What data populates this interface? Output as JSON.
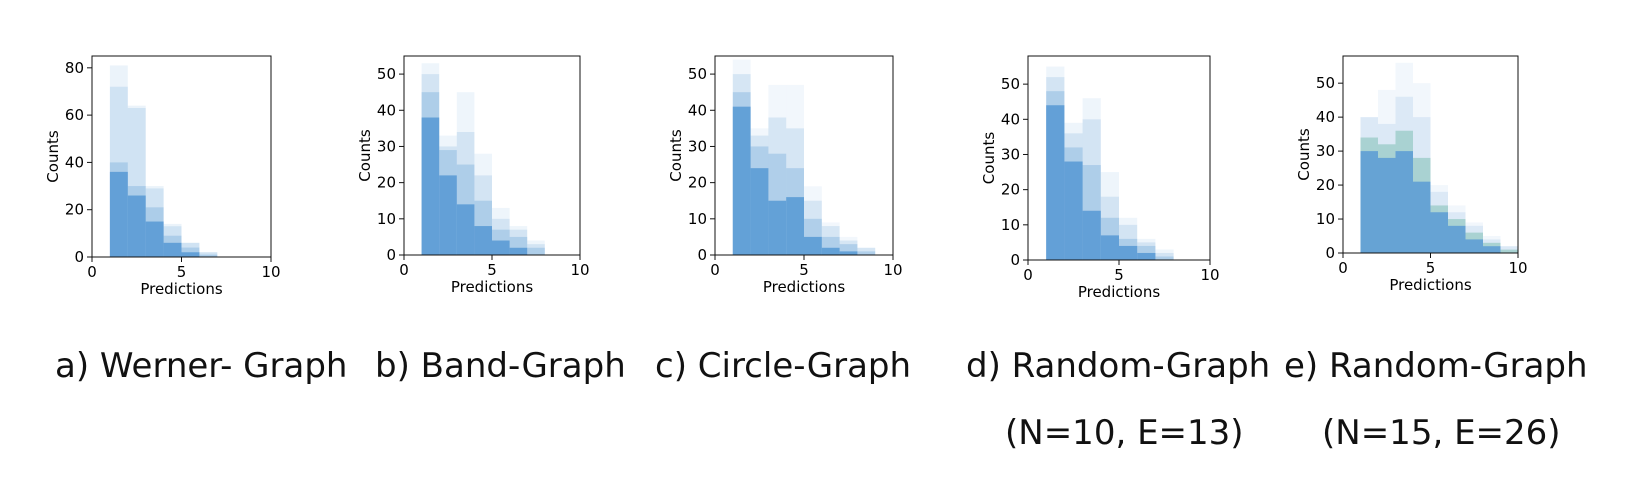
{
  "chart_data": [
    {
      "type": "bar",
      "caption": "a) Werner- Graph",
      "caption_line2": "",
      "xlabel": "Predictions",
      "ylabel": "Counts",
      "xlim": [
        0,
        10
      ],
      "ylim": [
        0,
        85
      ],
      "xticks": [
        0,
        5,
        10
      ],
      "yticks": [
        0,
        20,
        40,
        60,
        80
      ],
      "bin_width": 1,
      "series": [
        {
          "color": "#5b9bd5",
          "alpha": 0.9,
          "x": [
            1,
            2,
            3,
            4,
            5,
            6
          ],
          "values": [
            36,
            26,
            15,
            6,
            2,
            0
          ]
        },
        {
          "color": "#5b9bd5",
          "alpha": 0.3,
          "x": [
            1,
            2,
            3,
            4,
            5,
            6
          ],
          "values": [
            40,
            30,
            21,
            9,
            4,
            1
          ]
        },
        {
          "color": "#5b9bd5",
          "alpha": 0.18,
          "x": [
            1,
            2,
            3,
            4,
            5,
            6
          ],
          "values": [
            72,
            63,
            29,
            13,
            6,
            2
          ]
        },
        {
          "color": "#5b9bd5",
          "alpha": 0.12,
          "x": [
            1,
            2,
            3,
            4,
            5,
            6
          ],
          "values": [
            81,
            64,
            30,
            14,
            6,
            2
          ]
        }
      ]
    },
    {
      "type": "bar",
      "caption": "b) Band-Graph",
      "caption_line2": "",
      "xlabel": "Predictions",
      "ylabel": "Counts",
      "xlim": [
        0,
        10
      ],
      "ylim": [
        0,
        55
      ],
      "xticks": [
        0,
        5,
        10
      ],
      "yticks": [
        0,
        10,
        20,
        30,
        40,
        50
      ],
      "bin_width": 1,
      "series": [
        {
          "color": "#5b9bd5",
          "alpha": 0.9,
          "x": [
            1,
            2,
            3,
            4,
            5,
            6,
            7
          ],
          "values": [
            38,
            22,
            14,
            8,
            4,
            2,
            0
          ]
        },
        {
          "color": "#5b9bd5",
          "alpha": 0.3,
          "x": [
            1,
            2,
            3,
            4,
            5,
            6,
            7
          ],
          "values": [
            45,
            29,
            25,
            15,
            7,
            5,
            2
          ]
        },
        {
          "color": "#5b9bd5",
          "alpha": 0.18,
          "x": [
            1,
            2,
            3,
            4,
            5,
            6,
            7
          ],
          "values": [
            50,
            30,
            34,
            22,
            10,
            7,
            3
          ]
        },
        {
          "color": "#5b9bd5",
          "alpha": 0.1,
          "x": [
            1,
            2,
            3,
            4,
            5,
            6,
            7
          ],
          "values": [
            53,
            33,
            45,
            28,
            13,
            8,
            4
          ]
        }
      ]
    },
    {
      "type": "bar",
      "caption": "c) Circle-Graph",
      "caption_line2": "",
      "xlabel": "Predictions",
      "ylabel": "Counts",
      "xlim": [
        0,
        10
      ],
      "ylim": [
        0,
        55
      ],
      "xticks": [
        0,
        5,
        10
      ],
      "yticks": [
        0,
        10,
        20,
        30,
        40,
        50
      ],
      "bin_width": 1,
      "series": [
        {
          "color": "#5b9bd5",
          "alpha": 0.9,
          "x": [
            1,
            2,
            3,
            4,
            5,
            6,
            7,
            8
          ],
          "values": [
            41,
            24,
            15,
            16,
            5,
            2,
            1,
            0
          ]
        },
        {
          "color": "#5b9bd5",
          "alpha": 0.3,
          "x": [
            1,
            2,
            3,
            4,
            5,
            6,
            7,
            8
          ],
          "values": [
            45,
            30,
            28,
            24,
            10,
            5,
            3,
            1
          ]
        },
        {
          "color": "#5b9bd5",
          "alpha": 0.18,
          "x": [
            1,
            2,
            3,
            4,
            5,
            6,
            7,
            8
          ],
          "values": [
            50,
            33,
            38,
            35,
            15,
            8,
            4,
            2
          ]
        },
        {
          "color": "#5b9bd5",
          "alpha": 0.08,
          "x": [
            1,
            2,
            3,
            4,
            5,
            6,
            7,
            8
          ],
          "values": [
            54,
            35,
            47,
            47,
            19,
            9,
            5,
            2
          ]
        }
      ]
    },
    {
      "type": "bar",
      "caption": "d) Random-Graph",
      "caption_line2": "(N=10, E=13)",
      "xlabel": "Predictions",
      "ylabel": "Counts",
      "xlim": [
        0,
        10
      ],
      "ylim": [
        0,
        58
      ],
      "xticks": [
        0,
        5,
        10
      ],
      "yticks": [
        0,
        10,
        20,
        30,
        40,
        50
      ],
      "bin_width": 1,
      "series": [
        {
          "color": "#5b9bd5",
          "alpha": 0.9,
          "x": [
            1,
            2,
            3,
            4,
            5,
            6,
            7
          ],
          "values": [
            44,
            28,
            14,
            7,
            4,
            2,
            0
          ]
        },
        {
          "color": "#5b9bd5",
          "alpha": 0.3,
          "x": [
            1,
            2,
            3,
            4,
            5,
            6,
            7
          ],
          "values": [
            48,
            32,
            27,
            12,
            6,
            4,
            1
          ]
        },
        {
          "color": "#5b9bd5",
          "alpha": 0.18,
          "x": [
            1,
            2,
            3,
            4,
            5,
            6,
            7
          ],
          "values": [
            52,
            36,
            40,
            18,
            10,
            5,
            2
          ]
        },
        {
          "color": "#5b9bd5",
          "alpha": 0.1,
          "x": [
            1,
            2,
            3,
            4,
            5,
            6,
            7
          ],
          "values": [
            55,
            39,
            46,
            25,
            12,
            6,
            3
          ]
        }
      ]
    },
    {
      "type": "bar",
      "caption": "e) Random-Graph",
      "caption_line2": "(N=15, E=26)",
      "xlabel": "Predictions",
      "ylabel": "Counts",
      "xlim": [
        0,
        10
      ],
      "ylim": [
        0,
        58
      ],
      "xticks": [
        0,
        5,
        10
      ],
      "yticks": [
        0,
        10,
        20,
        30,
        40,
        50
      ],
      "bin_width": 1,
      "series": [
        {
          "color": "#5b9bd5",
          "alpha": 0.85,
          "x": [
            1,
            2,
            3,
            4,
            5,
            6,
            7,
            8,
            9
          ],
          "values": [
            30,
            28,
            30,
            21,
            12,
            8,
            4,
            2,
            0
          ]
        },
        {
          "color": "#4ba88f",
          "alpha": 0.35,
          "x": [
            1,
            2,
            3,
            4,
            5,
            6,
            7,
            8,
            9
          ],
          "values": [
            34,
            32,
            36,
            28,
            14,
            10,
            6,
            3,
            1
          ]
        },
        {
          "color": "#5b9bd5",
          "alpha": 0.15,
          "x": [
            1,
            2,
            3,
            4,
            5,
            6,
            7,
            8,
            9
          ],
          "values": [
            40,
            38,
            46,
            40,
            18,
            12,
            8,
            4,
            2
          ]
        },
        {
          "color": "#5b9bd5",
          "alpha": 0.08,
          "x": [
            1,
            2,
            3,
            4,
            5,
            6,
            7,
            8,
            9
          ],
          "values": [
            40,
            48,
            56,
            50,
            20,
            14,
            9,
            5,
            2
          ]
        }
      ]
    }
  ]
}
